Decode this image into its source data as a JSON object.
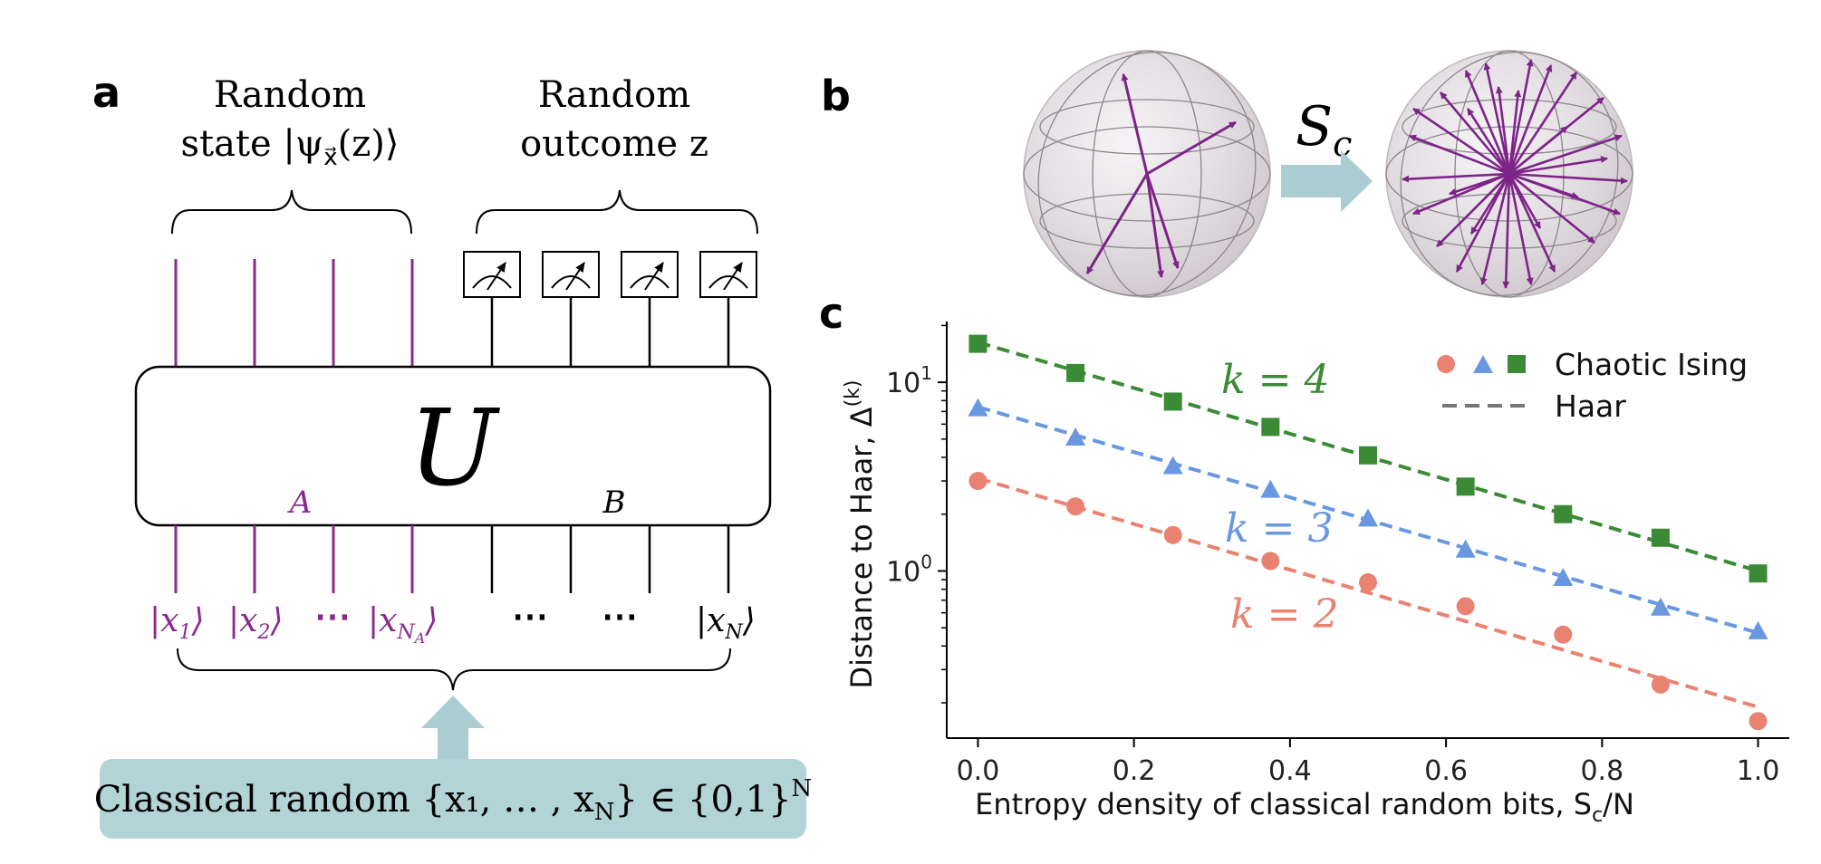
{
  "panels": {
    "a": "a",
    "b": "b",
    "c": "c"
  },
  "panel_a": {
    "random_state_line1": "Random",
    "random_state_line2": "state |ψ",
    "random_state_sub": "x⃗",
    "random_state_line2_tail": "(z)⟩",
    "random_outcome_line1": "Random",
    "random_outcome_line2": "outcome z",
    "unitary": "U",
    "subsystem_a": "A",
    "subsystem_b": "B",
    "kets": [
      {
        "main": "|x",
        "sub": "1",
        "end": "⟩"
      },
      {
        "main": "|x",
        "sub": "2",
        "end": "⟩"
      },
      {
        "main": "⋯",
        "sub": "",
        "end": ""
      },
      {
        "main": "|x",
        "sub": "N",
        "subsub": "A",
        "end": "⟩"
      }
    ],
    "dots_b1": "⋯",
    "dots_b2": "⋯",
    "ket_last": {
      "main": "|x",
      "sub": "N",
      "end": "⟩"
    },
    "classical_box": "Classical random {x₁, … , x",
    "classical_box_sub": "N",
    "classical_box_tail": "} ∈ {0,1}",
    "classical_box_sup": "N",
    "colors": {
      "purple": "#8a2a8f",
      "teal_box": "#b3d4d6",
      "arrow": "#a9cdd0"
    }
  },
  "panel_b": {
    "entropy_label": "S",
    "entropy_sub": "c"
  },
  "chart_data": {
    "type": "scatter",
    "xlabel": "Entropy density of classical random bits, S",
    "xlabel_sub": "c",
    "xlabel_tail": "/N",
    "ylabel": "Distance to Haar, Δ",
    "ylabel_sup": "(k)",
    "yscale": "log",
    "xlim": [
      -0.04,
      1.04
    ],
    "ylim": [
      0.13,
      21
    ],
    "x_ticks": [
      "0.0",
      "0.2",
      "0.4",
      "0.6",
      "0.8",
      "1.0"
    ],
    "x_tick_values": [
      0,
      0.2,
      0.4,
      0.6,
      0.8,
      1.0
    ],
    "y_ticks": [
      {
        "base": "10",
        "exp": "1",
        "value": 10
      },
      {
        "base": "10",
        "exp": "0",
        "value": 1
      }
    ],
    "x": [
      0,
      0.125,
      0.25,
      0.375,
      0.5,
      0.625,
      0.75,
      0.875,
      1.0
    ],
    "series": [
      {
        "label": "k = 4",
        "color": "#3b8a35",
        "marker": "square",
        "values": [
          16.0,
          11.2,
          7.9,
          5.8,
          4.1,
          2.8,
          2.0,
          1.5,
          0.97
        ],
        "haar_start": 16.3,
        "haar_end": 1.0
      },
      {
        "label": "k = 3",
        "color": "#6a98e0",
        "marker": "triangle",
        "values": [
          7.3,
          5.1,
          3.6,
          2.7,
          1.9,
          1.3,
          0.92,
          0.64,
          0.48
        ],
        "haar_start": 7.4,
        "haar_end": 0.47
      },
      {
        "label": "k = 2",
        "color": "#ea8272",
        "marker": "circle",
        "values": [
          3.0,
          2.2,
          1.55,
          1.13,
          0.87,
          0.65,
          0.46,
          0.25,
          0.16
        ],
        "haar_start": 3.1,
        "haar_end": 0.19
      }
    ],
    "legend": {
      "position": "top-right",
      "entries": [
        "Chaotic Ising",
        "Haar"
      ]
    }
  }
}
